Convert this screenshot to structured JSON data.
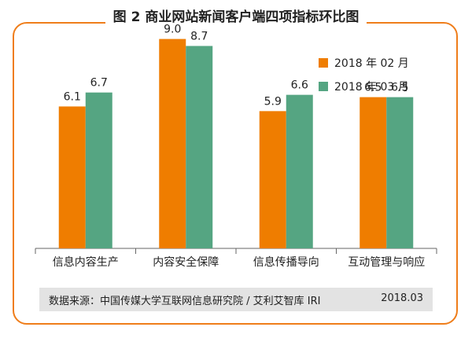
{
  "chart_data": {
    "type": "bar",
    "title": "图 2 商业网站新闻客户端四项指标环比图",
    "categories": [
      "信息内容生产",
      "内容安全保障",
      "信息传播导向",
      "互动管理与响应"
    ],
    "series": [
      {
        "name": "2018 年 02 月",
        "color": "#ef7d00",
        "values": [
          6.1,
          9.0,
          5.9,
          6.5
        ]
      },
      {
        "name": "2018 年 03 月",
        "color": "#55a582",
        "values": [
          6.7,
          8.7,
          6.6,
          6.5
        ]
      }
    ],
    "value_labels": [
      [
        "6.1",
        "9.0",
        "5.9",
        "6.5"
      ],
      [
        "6.7",
        "8.7",
        "6.6",
        "6.5"
      ]
    ],
    "ylim": [
      0,
      10
    ],
    "legend_position": "top-right",
    "grid": false
  },
  "footer": {
    "source": "数据来源：中国传媒大学互联网信息研究院 / 艾利艾智库 IRI",
    "date": "2018.03"
  }
}
